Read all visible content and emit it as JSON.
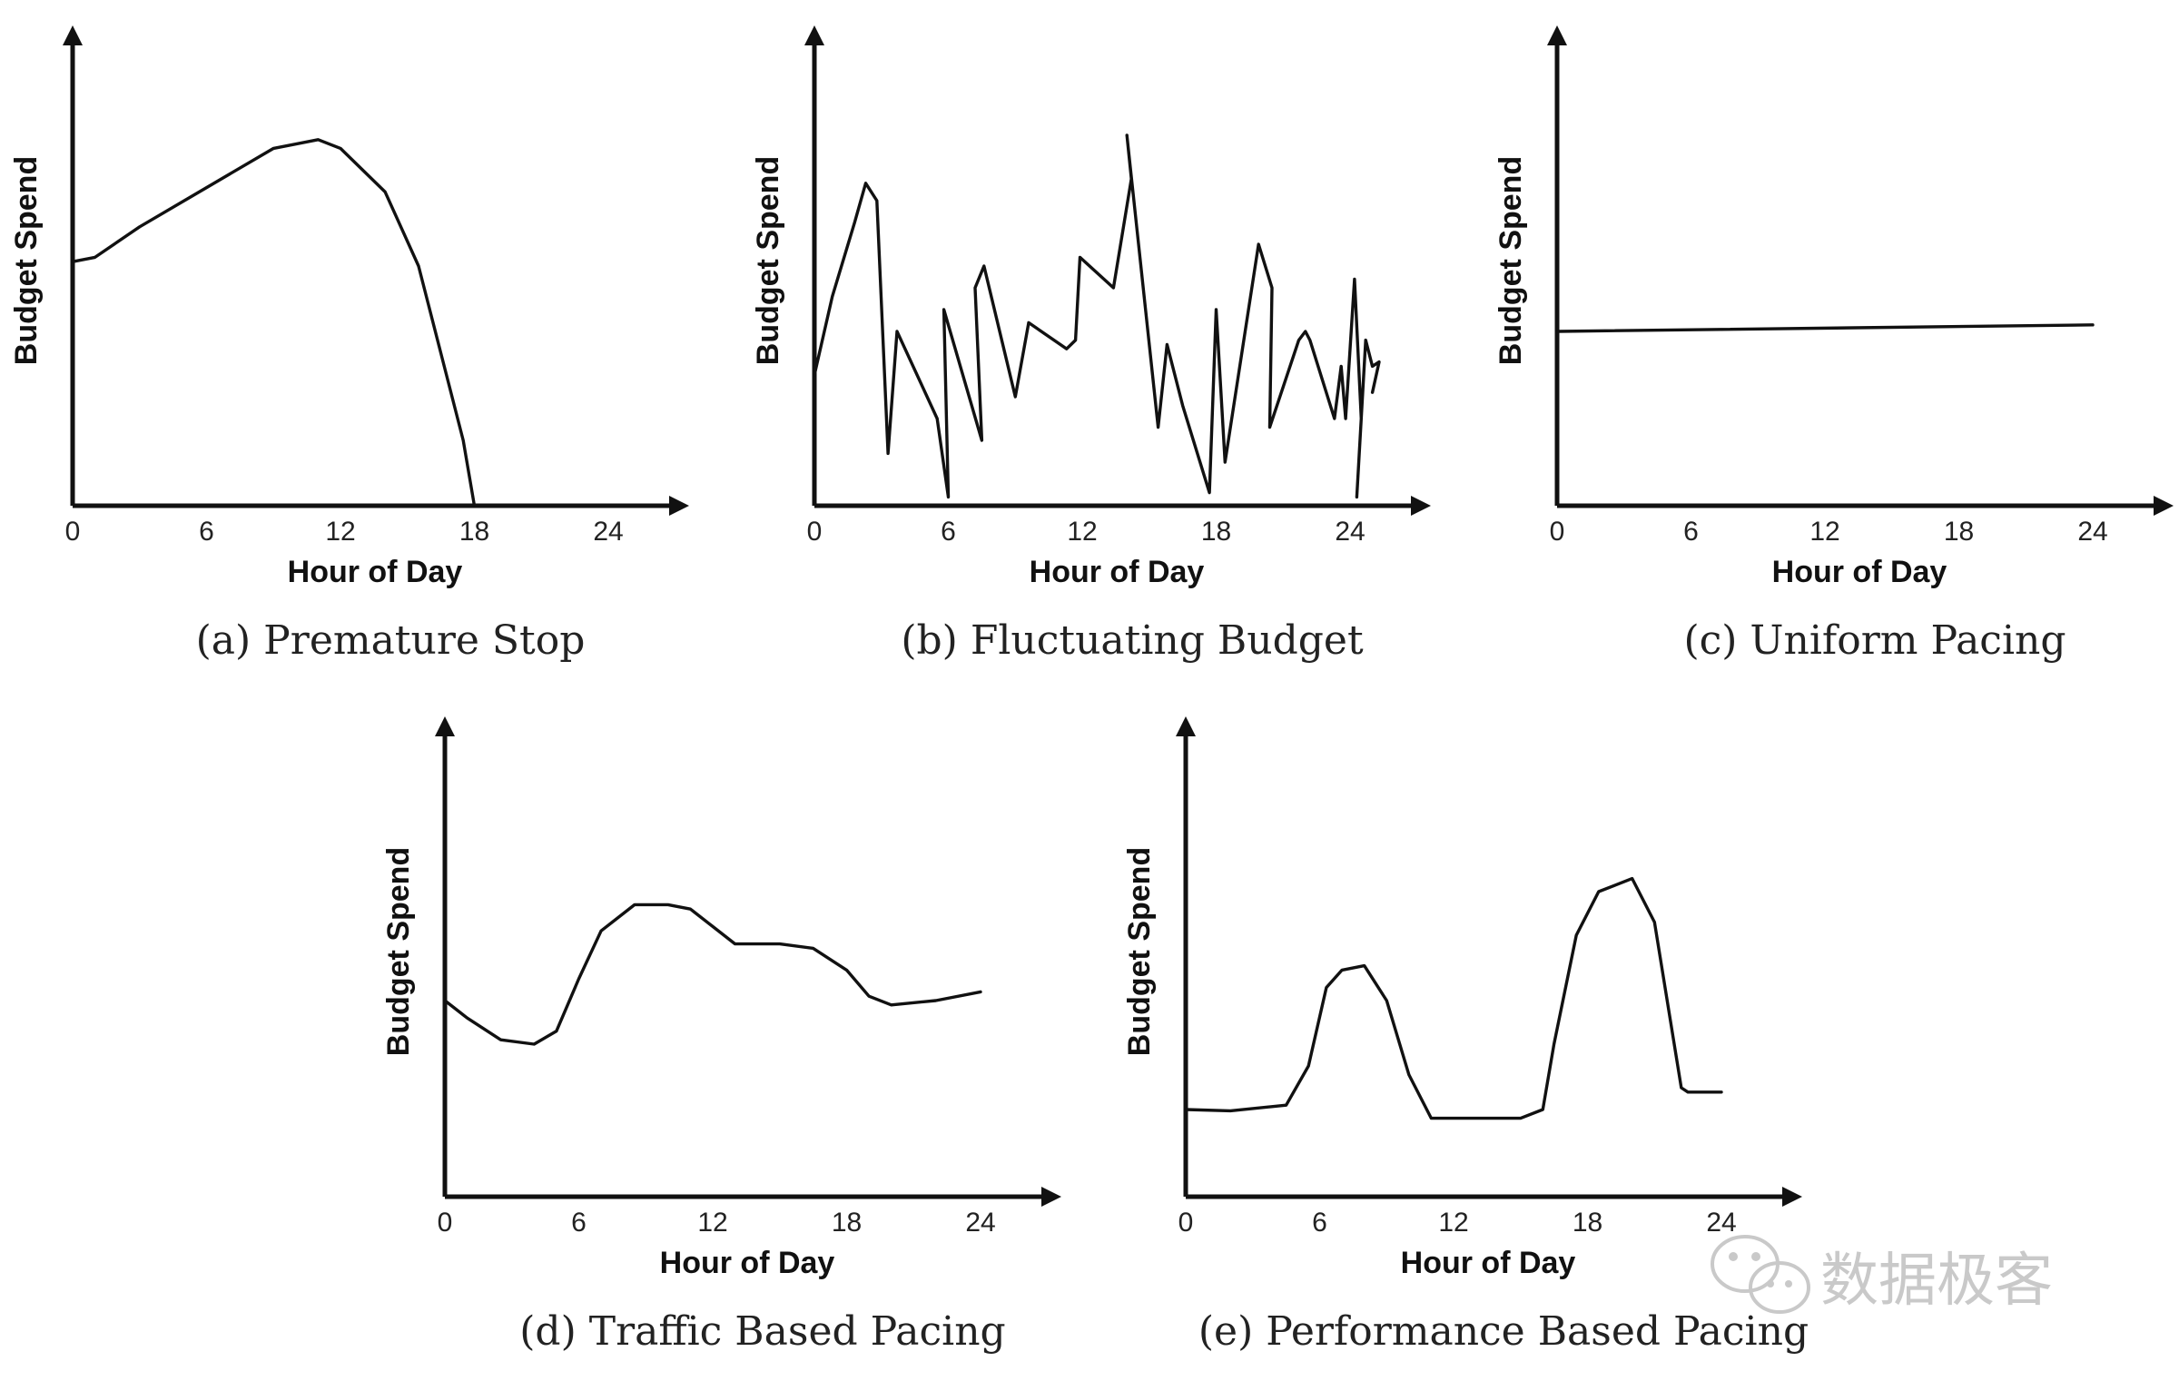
{
  "chart_data": [
    {
      "type": "line",
      "caption": "(a) Premature Stop",
      "xlabel": "Hour of Day",
      "ylabel": "Budget Spend",
      "xticks": [
        0,
        6,
        12,
        18,
        24
      ],
      "xlim": [
        0,
        24
      ],
      "ylim": [
        0,
        100
      ],
      "series": [
        {
          "x": [
            0,
            1,
            3,
            6,
            9,
            11,
            12,
            14,
            15.5,
            16.5,
            17.5,
            18
          ],
          "y": [
            56,
            57,
            64,
            73,
            82,
            84,
            82,
            72,
            55,
            35,
            15,
            0
          ]
        }
      ]
    },
    {
      "type": "line",
      "caption": "(b) Fluctuating Budget",
      "xlabel": "Hour of Day",
      "ylabel": "Budget Spend",
      "xticks": [
        0,
        6,
        12,
        18,
        24
      ],
      "xlim": [
        0,
        24
      ],
      "ylim": [
        0,
        100
      ],
      "series": [
        {
          "x": [
            0,
            0.8,
            1.8,
            2.3,
            2.8,
            3.3,
            3.7,
            5.5,
            6.0,
            5.8,
            7.5,
            7.2,
            7.6,
            9.0,
            9.6,
            11.3,
            11.7,
            11.9,
            13.4,
            14.2,
            14.0,
            15.4,
            15.8,
            16.5,
            17.7,
            18.0,
            18.4,
            19.9,
            20.5,
            20.4,
            21.7,
            22.0,
            22.2,
            23.3,
            23.6,
            23.8,
            24.2,
            24.5,
            24.3,
            24.7,
            25.0,
            25.3,
            25.0
          ],
          "y": [
            30,
            48,
            65,
            74,
            70,
            12,
            40,
            20,
            2,
            45,
            15,
            50,
            55,
            25,
            42,
            36,
            38,
            57,
            50,
            75,
            85,
            18,
            37,
            23,
            3,
            45,
            10,
            60,
            50,
            18,
            38,
            40,
            38,
            20,
            32,
            20,
            52,
            20,
            2,
            38,
            32,
            33,
            26
          ]
        }
      ]
    },
    {
      "type": "line",
      "caption": "(c) Uniform Pacing",
      "xlabel": "Hour of Day",
      "ylabel": "Budget Spend",
      "xticks": [
        0,
        6,
        12,
        18,
        24
      ],
      "xlim": [
        0,
        24
      ],
      "ylim": [
        0,
        100
      ],
      "series": [
        {
          "x": [
            0,
            24
          ],
          "y": [
            40,
            41.5
          ]
        }
      ]
    },
    {
      "type": "line",
      "caption": "(d) Traffic Based Pacing",
      "xlabel": "Hour of Day",
      "ylabel": "Budget Spend",
      "xticks": [
        0,
        6,
        12,
        18,
        24
      ],
      "xlim": [
        0,
        24
      ],
      "ylim": [
        0,
        100
      ],
      "series": [
        {
          "x": [
            0,
            1,
            2.5,
            4,
            5,
            6,
            7,
            8.5,
            10,
            11,
            12,
            13,
            15,
            16.5,
            18,
            19,
            20,
            22,
            24
          ],
          "y": [
            45,
            41,
            36,
            35,
            38,
            50,
            61,
            67,
            67,
            66,
            62,
            58,
            58,
            57,
            52,
            46,
            44,
            45,
            47
          ]
        }
      ]
    },
    {
      "type": "line",
      "caption": "(e) Performance Based Pacing",
      "xlabel": "Hour of Day",
      "ylabel": "Budget Spend",
      "xticks": [
        0,
        6,
        12,
        18,
        24
      ],
      "xlim": [
        0,
        24
      ],
      "ylim": [
        0,
        100
      ],
      "series": [
        {
          "x": [
            0,
            2,
            4.5,
            5.5,
            6.3,
            7,
            8,
            9,
            10,
            11,
            11.5,
            12.5,
            15,
            16,
            16.5,
            17.5,
            18.5,
            20,
            21,
            22.2,
            22.5,
            23,
            24
          ],
          "y": [
            20,
            19.7,
            21,
            30,
            48,
            52,
            53,
            45,
            28,
            18,
            18,
            18,
            18,
            20,
            35,
            60,
            70,
            73,
            63,
            25,
            24,
            24,
            24
          ]
        }
      ]
    }
  ],
  "watermark": {
    "text": "数据极客",
    "icon": "wechat-icon"
  }
}
